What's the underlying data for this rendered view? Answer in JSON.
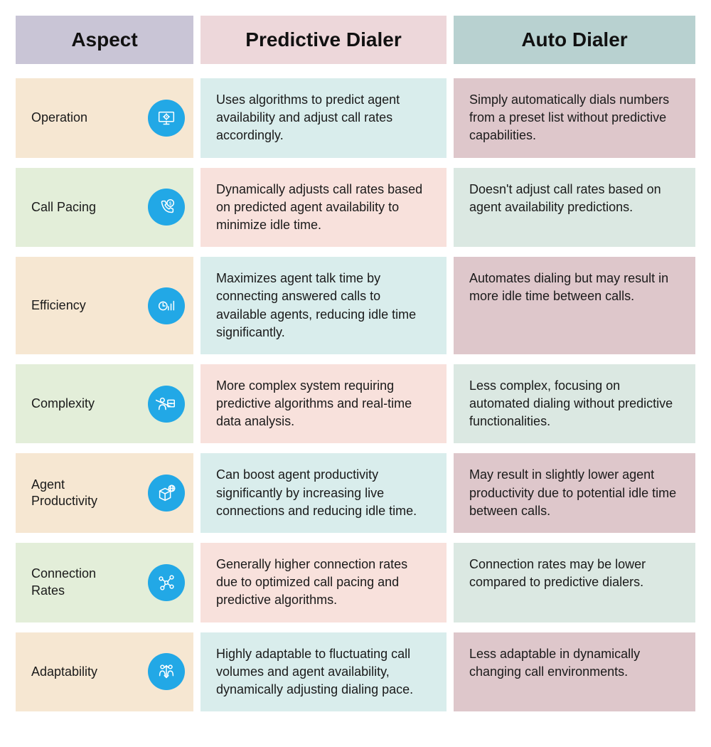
{
  "header": {
    "aspect": {
      "label": "Aspect",
      "bg": "#c9c5d6"
    },
    "predictive": {
      "label": "Predictive Dialer",
      "bg": "#edd7da"
    },
    "auto": {
      "label": "Auto Dialer",
      "bg": "#b8d1d0"
    }
  },
  "icon_color": "#22a8e6",
  "icon_stroke": "#ffffff",
  "rows": [
    {
      "aspect": "Operation",
      "predictive": "Uses algorithms to predict agent availability and adjust call rates accordingly.",
      "auto": "Simply automatically dials numbers from a preset list without predictive capabilities.",
      "aspect_bg": "#f6e7d2",
      "pred_bg": "#d9edec",
      "auto_bg": "#dec7cb",
      "icon": "monitor-gear"
    },
    {
      "aspect": "Call Pacing",
      "predictive": "Dynamically adjusts call rates based on predicted agent availability to minimize idle time.",
      "auto": "Doesn't adjust call rates based on agent availability predictions.",
      "aspect_bg": "#e3eed9",
      "pred_bg": "#f8e1dc",
      "auto_bg": "#dbe8e2",
      "icon": "phone-dollar"
    },
    {
      "aspect": "Efficiency",
      "predictive": "Maximizes agent talk time by connecting answered calls to available agents, reducing idle time significantly.",
      "auto": "Automates dialing but may result in more idle time between calls.",
      "aspect_bg": "#f6e7d2",
      "pred_bg": "#d9edec",
      "auto_bg": "#dec7cb",
      "icon": "clock-chart"
    },
    {
      "aspect": "Complexity",
      "predictive": "More complex system requiring predictive algorithms and real-time data analysis.",
      "auto": "Less complex, focusing on automated dialing without predictive functionalities.",
      "aspect_bg": "#e3eed9",
      "pred_bg": "#f8e1dc",
      "auto_bg": "#dbe8e2",
      "icon": "person-puzzle"
    },
    {
      "aspect": "Agent Productivity",
      "predictive": "Can boost agent productivity significantly by increasing live connections and reducing idle time.",
      "auto": "May result in slightly lower agent productivity due to potential idle time between calls.",
      "aspect_bg": "#f6e7d2",
      "pred_bg": "#d9edec",
      "auto_bg": "#dec7cb",
      "icon": "box-globe"
    },
    {
      "aspect": "Connection Rates",
      "predictive": "Generally higher connection rates due to optimized call pacing and predictive algorithms.",
      "auto": "Connection rates may be lower compared to predictive dialers.",
      "aspect_bg": "#e3eed9",
      "pred_bg": "#f8e1dc",
      "auto_bg": "#dbe8e2",
      "icon": "network-nodes"
    },
    {
      "aspect": "Adaptability",
      "predictive": "Highly adaptable to fluctuating call volumes and agent availability, dynamically adjusting dialing pace.",
      "auto": "Less adaptable in dynamically changing call environments.",
      "aspect_bg": "#f6e7d2",
      "pred_bg": "#d9edec",
      "auto_bg": "#dec7cb",
      "icon": "people-arrows"
    }
  ]
}
